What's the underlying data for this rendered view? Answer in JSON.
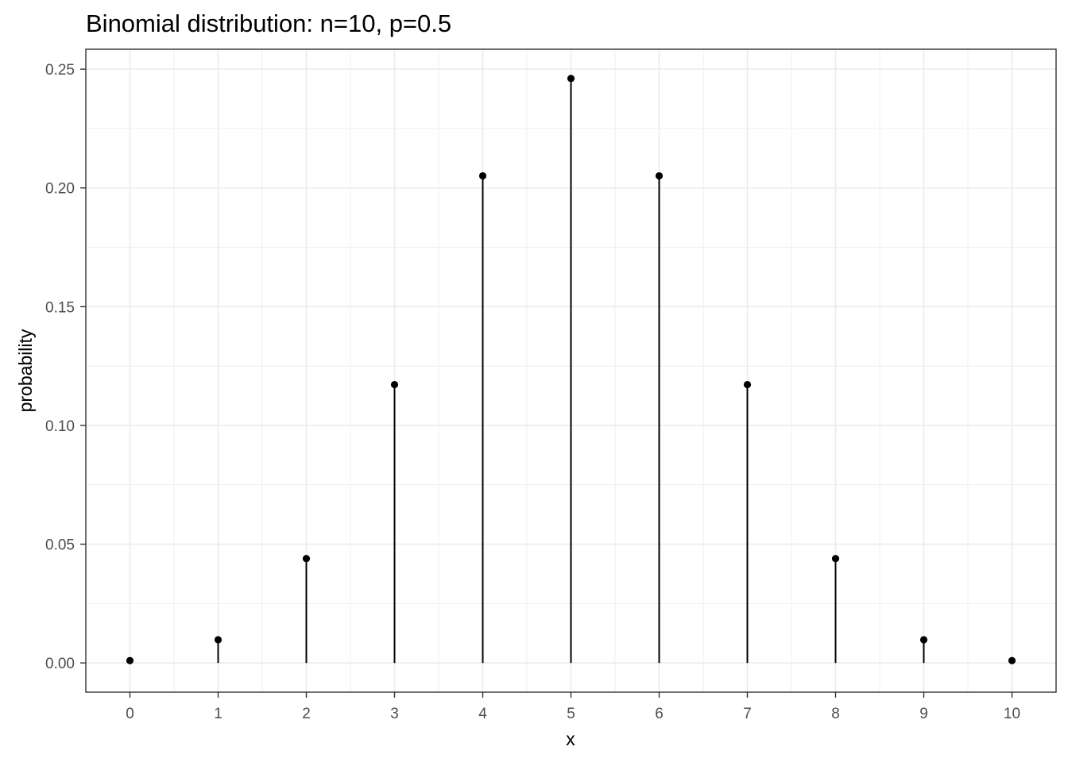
{
  "chart_data": {
    "type": "scatter",
    "style": "lollipop",
    "title": "Binomial distribution: n=10, p=0.5",
    "xlabel": "x",
    "ylabel": "probability",
    "x": [
      0,
      1,
      2,
      3,
      4,
      5,
      6,
      7,
      8,
      9,
      10
    ],
    "y": [
      0.000977,
      0.009766,
      0.043945,
      0.117188,
      0.205078,
      0.246094,
      0.205078,
      0.117188,
      0.043945,
      0.009766,
      0.000977
    ],
    "xlim": [
      -0.5,
      10.5
    ],
    "ylim": [
      -0.0123,
      0.2584
    ],
    "x_ticks": [
      "0",
      "1",
      "2",
      "3",
      "4",
      "5",
      "6",
      "7",
      "8",
      "9",
      "10"
    ],
    "y_ticks": [
      "0.00",
      "0.05",
      "0.10",
      "0.15",
      "0.20",
      "0.25"
    ],
    "grid": true,
    "legend": "none",
    "colors": {
      "mark": "#000000",
      "grid": "#ebebeb",
      "panel_border": "#333333",
      "tick_text": "#4d4d4d"
    }
  }
}
